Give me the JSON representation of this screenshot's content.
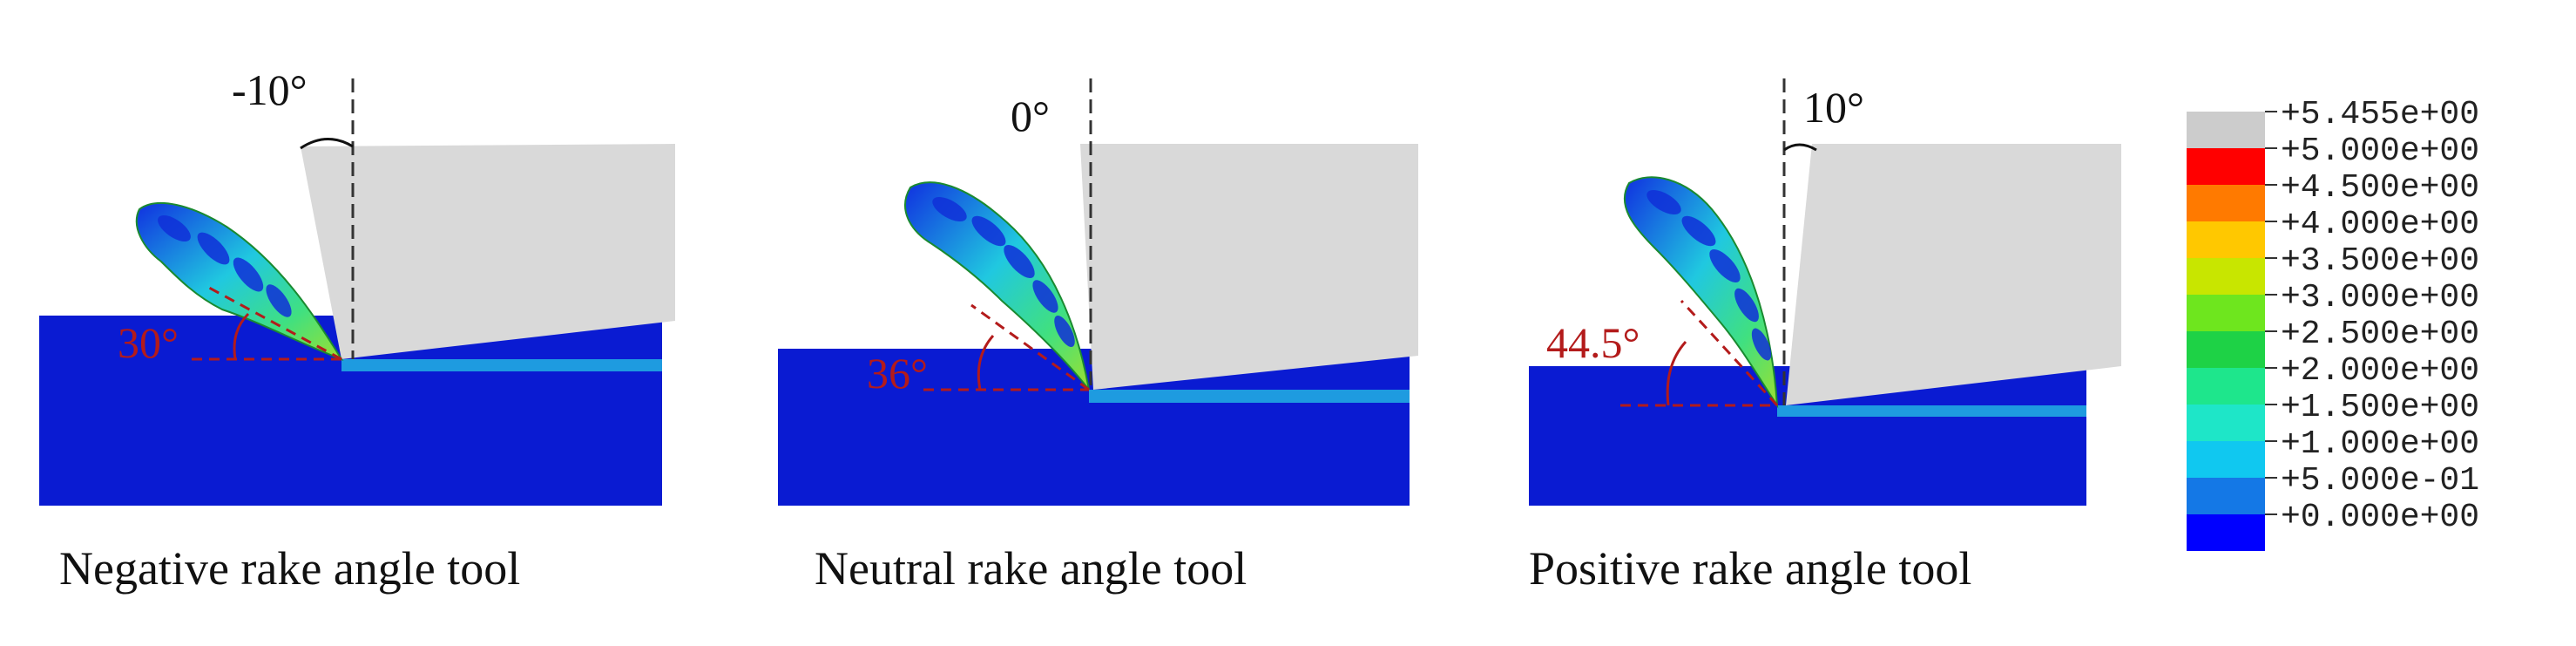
{
  "panels": [
    {
      "caption": "Negative rake angle tool",
      "rake_angle": "-10°",
      "shear_angle": "30°"
    },
    {
      "caption": "Neutral rake angle tool",
      "rake_angle": "0°",
      "shear_angle": "36°"
    },
    {
      "caption": "Positive rake angle tool",
      "rake_angle": "10°",
      "shear_angle": "44.5°"
    }
  ],
  "legend": {
    "labels": [
      "+5.455e+00",
      "+5.000e+00",
      "+4.500e+00",
      "+4.000e+00",
      "+3.500e+00",
      "+3.000e+00",
      "+2.500e+00",
      "+2.000e+00",
      "+1.500e+00",
      "+1.000e+00",
      "+5.000e-01",
      "+0.000e+00"
    ],
    "colors": [
      "#cccccc",
      "#ff0000",
      "#ff7a00",
      "#ffc800",
      "#c8e600",
      "#6ee61e",
      "#1ed246",
      "#1ee68c",
      "#1ee6c8",
      "#10c8f0",
      "#1478e6",
      "#0000ff"
    ]
  },
  "colors": {
    "workpiece": "#0a1bd2",
    "tool": "#d9d9d9",
    "guide": "#333333",
    "shear_guide": "#b31b1b"
  }
}
